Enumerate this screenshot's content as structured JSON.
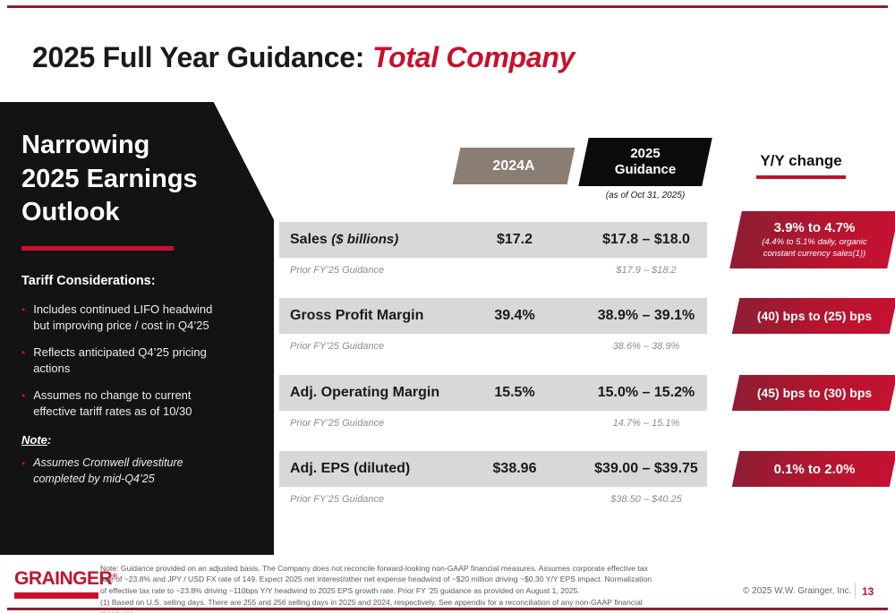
{
  "colors": {
    "accent_red": "#c8102e",
    "badge_gradient_dark": "#8e1d33",
    "badge_gradient_bright": "#c61132",
    "panel_black": "#131313",
    "row_gray": "#d8d8d8",
    "header_taupe": "#8a7d73"
  },
  "title": {
    "prefix": "2025 Full Year Guidance:",
    "highlight": "Total Company"
  },
  "sidebar": {
    "heading_lines": [
      "Narrowing",
      "2025 Earnings",
      "Outlook"
    ],
    "section_title": "Tariff Considerations:",
    "bullets": [
      "Includes continued LIFO headwind but improving price / cost in Q4’25",
      "Reflects anticipated Q4’25 pricing actions",
      "Assumes no change to current effective tariff rates as of 10/30"
    ],
    "note_label": "Note",
    "note_colon": ":",
    "note_bullets": [
      "Assumes Cromwell divestiture completed by mid-Q4’25"
    ]
  },
  "table": {
    "headers": {
      "col2024": "2024A",
      "col2025": "2025 Guidance",
      "col2025_note": "(as of Oct 31, 2025)",
      "yy": "Y/Y change"
    },
    "rows": [
      {
        "label": "Sales",
        "label_note": "($ billions)",
        "v2024": "$17.2",
        "v2025": "$17.8 – $18.0",
        "prior_label": "Prior FY’25 Guidance",
        "prior_value": "$17.9 – $18.2"
      },
      {
        "label": "Gross Profit Margin",
        "label_note": "",
        "v2024": "39.4%",
        "v2025": "38.9% – 39.1%",
        "prior_label": "Prior FY’25 Guidance",
        "prior_value": "38.6% – 38.9%"
      },
      {
        "label": "Adj. Operating Margin",
        "label_note": "",
        "v2024": "15.5%",
        "v2025": "15.0% – 15.2%",
        "prior_label": "Prior FY’25 Guidance",
        "prior_value": "14.7% – 15.1%"
      },
      {
        "label": "Adj. EPS (diluted)",
        "label_note": "",
        "v2024": "$38.96",
        "v2025": "$39.00 – $39.75",
        "prior_label": "Prior FY’25 Guidance",
        "prior_value": "$38.50 – $40.25"
      }
    ],
    "yy_badges": [
      {
        "main": "3.9% to 4.7%",
        "sub": "(4.4% to 5.1% daily, organic constant currency sales(1))"
      },
      {
        "main": "(40) bps to (25) bps",
        "sub": ""
      },
      {
        "main": "(45) bps to (30) bps",
        "sub": ""
      },
      {
        "main": "0.1% to 2.0%",
        "sub": ""
      }
    ]
  },
  "footer": {
    "logo": "GRAINGER",
    "logo_reg": "®",
    "note": "Note: Guidance provided on an adjusted basis. The Company does not reconcile forward-looking non-GAAP financial measures. Assumes corporate effective tax rate of ~23.8% and JPY / USD FX rate of 149. Expect 2025 net interest/other net expense headwind of ~$20 million driving ~$0.30 Y/Y EPS impact. Normalization of effective tax rate to ~23.8% driving ~110bps Y/Y headwind to 2025 EPS growth rate. Prior FY ’25 guidance as provided on August 1, 2025.",
    "footnote": "(1)  Based on U.S. selling days. There are 255 and 256 selling days in 2025 and 2024, respectively. See appendix for a reconciliation of any non-GAAP financial measures.",
    "copyright": "© 2025 W.W. Grainger, Inc.",
    "page": "13"
  }
}
